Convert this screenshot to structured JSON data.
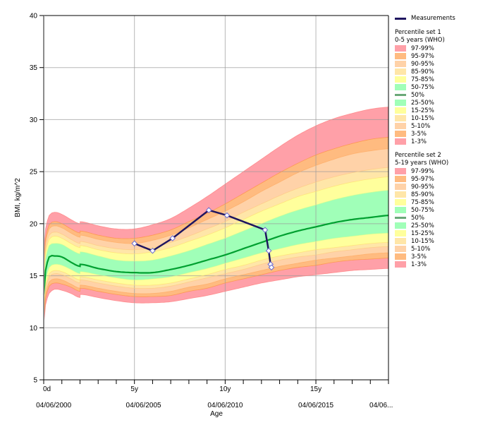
{
  "chart_data": {
    "type": "area",
    "title": "",
    "xlabel": "Age",
    "ylabel": "BMI, kg/m^2",
    "ylim": [
      5,
      40
    ],
    "xlim_years": [
      0,
      19
    ],
    "y_ticks": [
      5,
      10,
      15,
      20,
      25,
      30,
      35,
      40
    ],
    "x_ticks": [
      {
        "age": 0,
        "label": "0d"
      },
      {
        "age": 5,
        "label": "5y"
      },
      {
        "age": 10,
        "label": "10y"
      },
      {
        "age": 15,
        "label": "15y"
      }
    ],
    "x_minor_tick_step_years": 1,
    "date_labels": [
      {
        "age": 0.55,
        "label": "04/06/2000"
      },
      {
        "age": 5.5,
        "label": "04/06/2005"
      },
      {
        "age": 10,
        "label": "04/06/2010"
      },
      {
        "age": 15,
        "label": "04/06/2015"
      },
      {
        "age": 18.6,
        "label": "04/06..."
      }
    ],
    "grid": true,
    "legend_position": "right",
    "measurements": {
      "name": "Measurements",
      "color": "#1f1660",
      "points": [
        {
          "age": 5.0,
          "bmi": 18.1
        },
        {
          "age": 6.0,
          "bmi": 17.4
        },
        {
          "age": 7.1,
          "bmi": 18.6
        },
        {
          "age": 9.1,
          "bmi": 21.3
        },
        {
          "age": 10.1,
          "bmi": 20.8
        },
        {
          "age": 12.2,
          "bmi": 19.4
        },
        {
          "age": 12.4,
          "bmi": 17.4
        },
        {
          "age": 12.5,
          "bmi": 16.1
        },
        {
          "age": 12.55,
          "bmi": 15.8
        }
      ]
    },
    "percentile_ages": [
      0,
      0.1,
      0.3,
      0.6,
      1.0,
      1.5,
      2.0,
      2.01,
      3,
      4,
      5,
      6,
      7,
      8,
      9,
      10,
      11,
      12,
      13,
      14,
      15,
      16,
      17,
      18,
      19
    ],
    "percentiles": {
      "P1": [
        10.3,
        12.2,
        13.3,
        13.7,
        13.6,
        13.3,
        12.9,
        13.2,
        12.9,
        12.6,
        12.4,
        12.4,
        12.5,
        12.8,
        13.1,
        13.5,
        13.9,
        14.3,
        14.6,
        14.9,
        15.1,
        15.3,
        15.5,
        15.6,
        15.7
      ],
      "P3": [
        10.8,
        12.8,
        14.0,
        14.3,
        14.2,
        13.9,
        13.5,
        13.8,
        13.5,
        13.2,
        13.0,
        13.0,
        13.1,
        13.5,
        13.8,
        14.3,
        14.7,
        15.1,
        15.5,
        15.8,
        16.0,
        16.3,
        16.5,
        16.6,
        16.7
      ],
      "P5": [
        11.1,
        13.2,
        14.4,
        14.7,
        14.6,
        14.2,
        13.8,
        14.1,
        13.8,
        13.5,
        13.3,
        13.3,
        13.5,
        13.9,
        14.2,
        14.7,
        15.1,
        15.5,
        15.9,
        16.2,
        16.5,
        16.7,
        16.9,
        17.1,
        17.2
      ],
      "P10": [
        11.5,
        13.7,
        14.9,
        15.2,
        15.1,
        14.7,
        14.3,
        14.6,
        14.3,
        14.0,
        13.8,
        13.8,
        14.0,
        14.4,
        14.8,
        15.2,
        15.6,
        16.1,
        16.5,
        16.8,
        17.0,
        17.3,
        17.5,
        17.7,
        17.8
      ],
      "P15": [
        11.8,
        14.0,
        15.2,
        15.5,
        15.4,
        15.0,
        14.6,
        14.9,
        14.6,
        14.3,
        14.1,
        14.1,
        14.3,
        14.7,
        15.1,
        15.6,
        16.0,
        16.5,
        16.9,
        17.2,
        17.5,
        17.7,
        17.9,
        18.1,
        18.2
      ],
      "P25": [
        12.2,
        14.5,
        15.8,
        16.1,
        16.0,
        15.6,
        15.2,
        15.4,
        15.1,
        14.8,
        14.6,
        14.7,
        14.9,
        15.3,
        15.7,
        16.2,
        16.7,
        17.2,
        17.6,
        18.0,
        18.3,
        18.6,
        18.8,
        19.0,
        19.1
      ],
      "P50": [
        13.2,
        15.5,
        16.8,
        16.9,
        16.8,
        16.3,
        15.9,
        16.1,
        15.7,
        15.4,
        15.3,
        15.3,
        15.6,
        16.0,
        16.5,
        17.0,
        17.6,
        18.2,
        18.8,
        19.3,
        19.7,
        20.1,
        20.4,
        20.6,
        20.8
      ],
      "P75": [
        14.3,
        16.6,
        17.9,
        18.1,
        18.0,
        17.5,
        17.1,
        17.3,
        16.9,
        16.5,
        16.4,
        16.5,
        16.9,
        17.4,
        18.0,
        18.6,
        19.3,
        20.0,
        20.7,
        21.3,
        21.8,
        22.3,
        22.7,
        23.0,
        23.2
      ],
      "P85": [
        14.9,
        17.2,
        18.5,
        18.8,
        18.6,
        18.1,
        17.7,
        17.9,
        17.5,
        17.2,
        17.1,
        17.3,
        17.7,
        18.3,
        18.9,
        19.6,
        20.4,
        21.2,
        21.9,
        22.6,
        23.1,
        23.6,
        24.0,
        24.3,
        24.5
      ],
      "P90": [
        15.3,
        17.6,
        18.9,
        19.2,
        19.0,
        18.5,
        18.1,
        18.3,
        17.9,
        17.6,
        17.5,
        17.7,
        18.2,
        18.8,
        19.5,
        20.2,
        21.1,
        21.9,
        22.7,
        23.4,
        24.0,
        24.5,
        24.9,
        25.2,
        25.4
      ],
      "P95": [
        15.9,
        18.2,
        19.5,
        19.8,
        19.6,
        19.1,
        18.7,
        18.9,
        18.5,
        18.2,
        18.1,
        18.4,
        18.9,
        19.6,
        20.4,
        21.2,
        22.1,
        23.1,
        24.0,
        24.9,
        25.6,
        26.2,
        26.7,
        27.0,
        27.2
      ],
      "P97": [
        16.3,
        18.6,
        19.9,
        20.2,
        20.0,
        19.5,
        19.1,
        19.3,
        18.9,
        18.6,
        18.6,
        18.9,
        19.4,
        20.2,
        21.0,
        21.9,
        22.9,
        23.9,
        24.9,
        25.8,
        26.6,
        27.2,
        27.7,
        28.1,
        28.3
      ],
      "P99": [
        17.2,
        19.5,
        20.8,
        21.1,
        20.9,
        20.4,
        20.0,
        20.2,
        19.8,
        19.5,
        19.5,
        19.9,
        20.5,
        21.5,
        22.6,
        23.8,
        25.0,
        26.2,
        27.4,
        28.5,
        29.4,
        30.1,
        30.6,
        31.0,
        31.2
      ]
    },
    "bands": [
      {
        "label": "97-99%",
        "from": "P97",
        "to": "P99",
        "color": "#ffa0a8"
      },
      {
        "label": "95-97%",
        "from": "P95",
        "to": "P97",
        "color": "#ffbb80"
      },
      {
        "label": "90-95%",
        "from": "P90",
        "to": "P95",
        "color": "#ffd2a8"
      },
      {
        "label": "85-90%",
        "from": "P85",
        "to": "P90",
        "color": "#ffe6a8"
      },
      {
        "label": "75-85%",
        "from": "P75",
        "to": "P85",
        "color": "#ffff9c"
      },
      {
        "label": "50-75%",
        "from": "P50",
        "to": "P75",
        "color": "#a0ffb8"
      },
      {
        "label": "25-50%",
        "from": "P25",
        "to": "P50",
        "color": "#a0ffb8"
      },
      {
        "label": "15-25%",
        "from": "P15",
        "to": "P25",
        "color": "#ffff9c"
      },
      {
        "label": "10-15%",
        "from": "P10",
        "to": "P15",
        "color": "#ffe6a8"
      },
      {
        "label": "5-10%",
        "from": "P5",
        "to": "P10",
        "color": "#ffd2a8"
      },
      {
        "label": "3-5%",
        "from": "P3",
        "to": "P5",
        "color": "#ffbb80"
      },
      {
        "label": "1-3%",
        "from": "P1",
        "to": "P3",
        "color": "#ffa0a8"
      }
    ],
    "median_color": "#00a030",
    "legend": {
      "measurements_label": "Measurements",
      "sets": [
        {
          "title": "Percentile set 1",
          "subtitle": "0-5 years (WHO)",
          "items": [
            {
              "label": "97-99%",
              "type": "band",
              "color": "#ffa0a8"
            },
            {
              "label": "95-97%",
              "type": "band",
              "color": "#ffbb80"
            },
            {
              "label": "90-95%",
              "type": "band",
              "color": "#ffd2a8"
            },
            {
              "label": "85-90%",
              "type": "band",
              "color": "#ffe6a8"
            },
            {
              "label": "75-85%",
              "type": "band",
              "color": "#ffff9c"
            },
            {
              "label": "50-75%",
              "type": "band",
              "color": "#a0ffb8"
            },
            {
              "label": "50%",
              "type": "line",
              "color": "#6aa878"
            },
            {
              "label": "25-50%",
              "type": "band",
              "color": "#a0ffb8"
            },
            {
              "label": "15-25%",
              "type": "band",
              "color": "#ffff9c"
            },
            {
              "label": "10-15%",
              "type": "band",
              "color": "#ffe6a8"
            },
            {
              "label": "5-10%",
              "type": "band",
              "color": "#ffd2a8"
            },
            {
              "label": "3-5%",
              "type": "band",
              "color": "#ffbb80"
            },
            {
              "label": "1-3%",
              "type": "band",
              "color": "#ffa0a8"
            }
          ]
        },
        {
          "title": "Percentile set 2",
          "subtitle": "5-19 years (WHO)",
          "items": [
            {
              "label": "97-99%",
              "type": "band",
              "color": "#ffa0a8"
            },
            {
              "label": "95-97%",
              "type": "band",
              "color": "#ffbb80"
            },
            {
              "label": "90-95%",
              "type": "band",
              "color": "#ffd2a8"
            },
            {
              "label": "85-90%",
              "type": "band",
              "color": "#ffe6a8"
            },
            {
              "label": "75-85%",
              "type": "band",
              "color": "#ffff9c"
            },
            {
              "label": "50-75%",
              "type": "band",
              "color": "#a0ffb8"
            },
            {
              "label": "50%",
              "type": "line",
              "color": "#6aa878"
            },
            {
              "label": "25-50%",
              "type": "band",
              "color": "#a0ffb8"
            },
            {
              "label": "15-25%",
              "type": "band",
              "color": "#ffff9c"
            },
            {
              "label": "10-15%",
              "type": "band",
              "color": "#ffe6a8"
            },
            {
              "label": "5-10%",
              "type": "band",
              "color": "#ffd2a8"
            },
            {
              "label": "3-5%",
              "type": "band",
              "color": "#ffbb80"
            },
            {
              "label": "1-3%",
              "type": "band",
              "color": "#ffa0a8"
            }
          ]
        }
      ]
    }
  }
}
